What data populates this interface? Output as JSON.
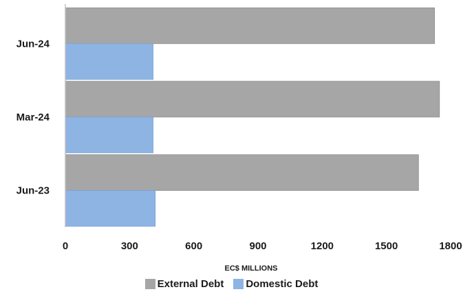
{
  "chart_data": {
    "type": "bar",
    "orientation": "horizontal",
    "categories": [
      "Jun-24",
      "Mar-24",
      "Jun-23"
    ],
    "series": [
      {
        "name": "External Debt",
        "color": "#a6a6a6",
        "values": [
          1725,
          1748,
          1650
        ]
      },
      {
        "name": "Domestic Debt",
        "color": "#8eb4e3",
        "values": [
          410,
          410,
          420
        ]
      }
    ],
    "x_ticks": [
      0,
      300,
      600,
      900,
      1200,
      1500,
      1800
    ],
    "xlim": [
      0,
      1800
    ],
    "xlabel": "EC$ MILLIONS",
    "title": "",
    "legend_position": "bottom",
    "grid": false
  }
}
